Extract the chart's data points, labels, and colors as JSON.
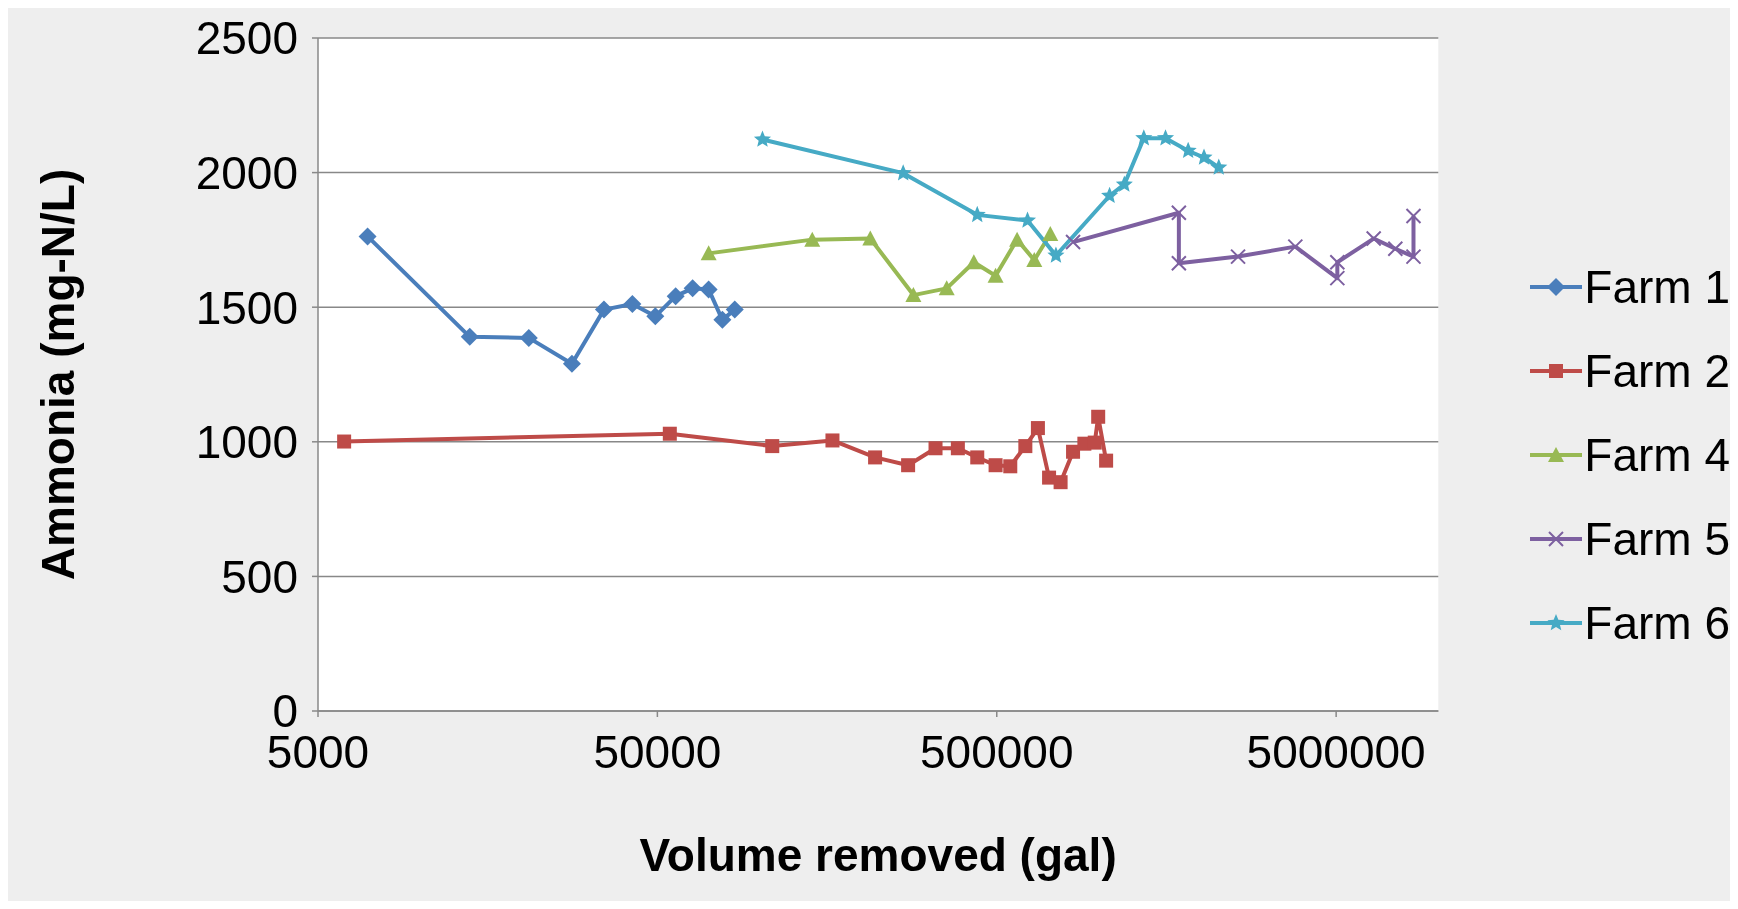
{
  "chart_data": {
    "type": "line",
    "xlabel": "Volume removed (gal)",
    "ylabel": "Ammonia (mg-N/L)",
    "log": "x",
    "xlim": [
      5000,
      10000000
    ],
    "xticks": [
      5000,
      50000,
      500000,
      5000000
    ],
    "ylim": [
      0,
      2500
    ],
    "yticks": [
      0,
      500,
      1000,
      1500,
      2000,
      2500
    ],
    "grid": "y",
    "legend": "right",
    "series": [
      {
        "name": "Farm 1",
        "color": "#4a7ebb",
        "marker": "diamond",
        "x": [
          7000,
          14000,
          20900,
          28000,
          34800,
          42200,
          49300,
          56600,
          63500,
          70800,
          77700,
          84500
        ],
        "values": [
          1763,
          1390,
          1386,
          1290,
          1491,
          1512,
          1466,
          1541,
          1570,
          1566,
          1453,
          1491
        ]
      },
      {
        "name": "Farm 2",
        "color": "#be4b48",
        "marker": "square",
        "x": [
          5970,
          54400,
          109000,
          164000,
          219000,
          274000,
          330000,
          384000,
          438000,
          496000,
          548000,
          607000,
          661000,
          713000,
          771000,
          839000,
          906000,
          972000,
          995000,
          1050000
        ],
        "values": [
          1001,
          1030,
          984,
          1005,
          942,
          913,
          976,
          976,
          942,
          913,
          909,
          984,
          1051,
          867,
          850,
          963,
          993,
          997,
          1093,
          930
        ]
      },
      {
        "name": "Farm 4",
        "color": "#98b954",
        "marker": "triangle",
        "x": [
          70800,
          143000,
          212000,
          284000,
          356000,
          428000,
          496000,
          574000,
          645000,
          719000
        ],
        "values": [
          1700,
          1751,
          1755,
          1545,
          1570,
          1667,
          1617,
          1751,
          1675,
          1772
        ]
      },
      {
        "name": "Farm 5",
        "color": "#7d60a0",
        "marker": "cross",
        "x": [
          839000,
          1720000,
          1720000,
          2570000,
          3790000,
          5040000,
          5040000,
          6450000,
          7470000,
          8450000,
          8450000
        ],
        "values": [
          1742,
          1851,
          1663,
          1688,
          1725,
          1608,
          1667,
          1755,
          1717,
          1688,
          1839
        ]
      },
      {
        "name": "Farm 6",
        "color": "#46aac5",
        "marker": "star",
        "x": [
          102000,
          265000,
          438000,
          616000,
          747000,
          1075000,
          1188000,
          1356000,
          1571000,
          1832000,
          2040000,
          2255000
        ],
        "values": [
          2123,
          1998,
          1843,
          1822,
          1692,
          1914,
          1956,
          2128,
          2128,
          2081,
          2056,
          2019
        ]
      }
    ]
  }
}
